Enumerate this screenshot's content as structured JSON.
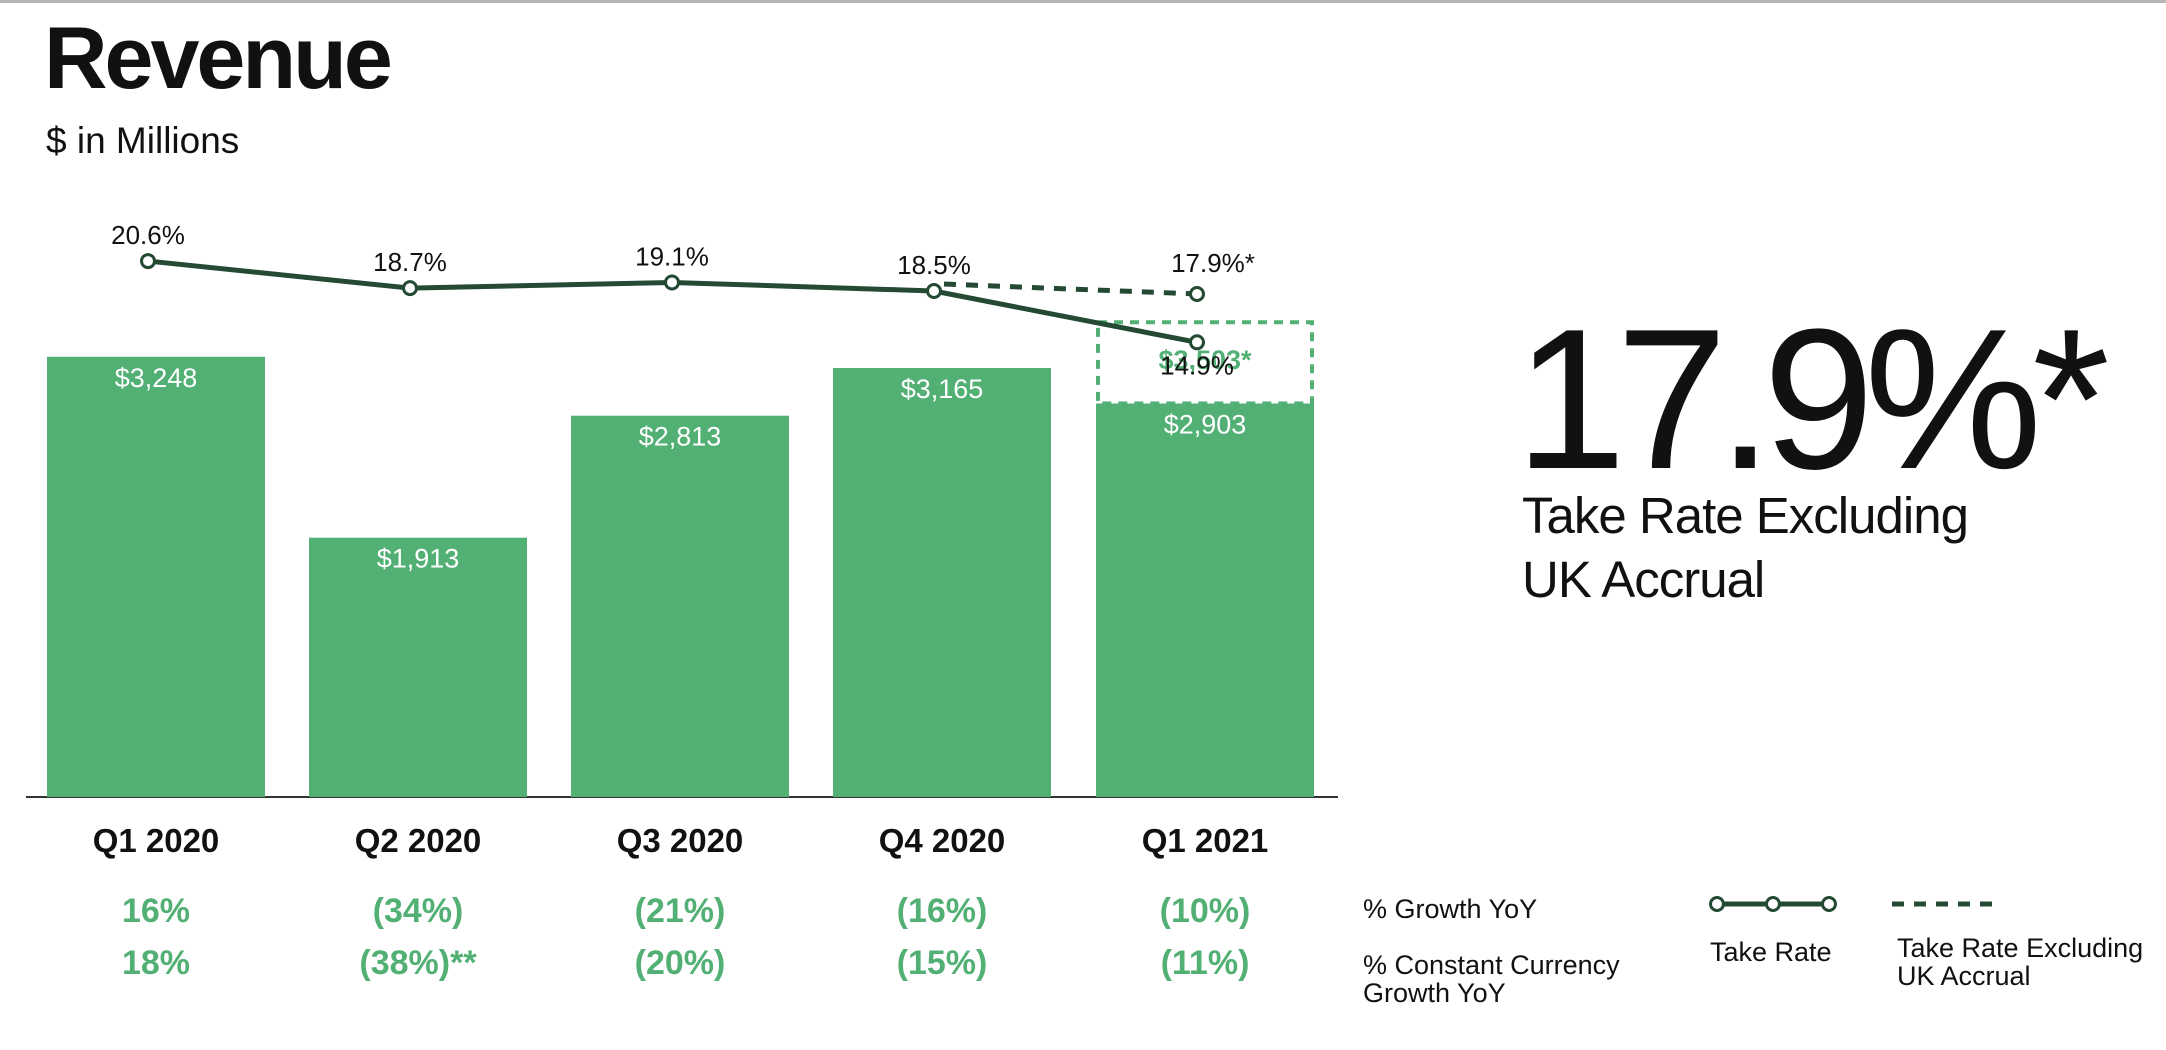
{
  "header": {
    "title": "Revenue",
    "subtitle": "$ in Millions"
  },
  "kpi": {
    "value": "17.9%*",
    "label": "Take Rate Excluding UK Accrual"
  },
  "rows": [
    {
      "label": "% Growth YoY",
      "values": [
        "16%",
        "(34%)",
        "(21%)",
        "(16%)",
        "(10%)"
      ]
    },
    {
      "label": "% Constant Currency Growth YoY",
      "values": [
        "18%",
        "(38%)**",
        "(20%)",
        "(15%)",
        "(11%)"
      ]
    }
  ],
  "legend": {
    "take_rate": "Take Rate",
    "take_rate_ex_uk": "Take Rate Excluding UK Accrual"
  },
  "colors": {
    "bar": "#52b075",
    "line": "#244a33",
    "axis": "#333333",
    "text": "#111111"
  },
  "chart_data": {
    "type": "bar",
    "title": "Revenue",
    "ylabel": "$ in Millions",
    "categories": [
      "Q1 2020",
      "Q2 2020",
      "Q3 2020",
      "Q4 2020",
      "Q1 2021"
    ],
    "ylim": [
      0,
      3700
    ],
    "series": [
      {
        "name": "Revenue",
        "values": [
          3248,
          1913,
          2813,
          3165,
          2903
        ],
        "labels": [
          "$3,248",
          "$1,913",
          "$2,813",
          "$3,165",
          "$2,903"
        ]
      },
      {
        "name": "Revenue Excluding UK Accrual",
        "values": [
          null,
          null,
          null,
          null,
          3503
        ],
        "labels": [
          "",
          "",
          "",
          "",
          "$3,503*"
        ]
      }
    ],
    "lines": [
      {
        "name": "Take Rate",
        "values": [
          20.6,
          18.7,
          19.1,
          18.5,
          14.9
        ],
        "labels": [
          "20.6%",
          "18.7%",
          "19.1%",
          "18.5%",
          "14.9%"
        ]
      },
      {
        "name": "Take Rate Excluding UK Accrual",
        "style": "dashed",
        "values": [
          null,
          null,
          null,
          18.5,
          17.9
        ],
        "labels": [
          "",
          "",
          "",
          "",
          "17.9%*"
        ]
      }
    ]
  }
}
